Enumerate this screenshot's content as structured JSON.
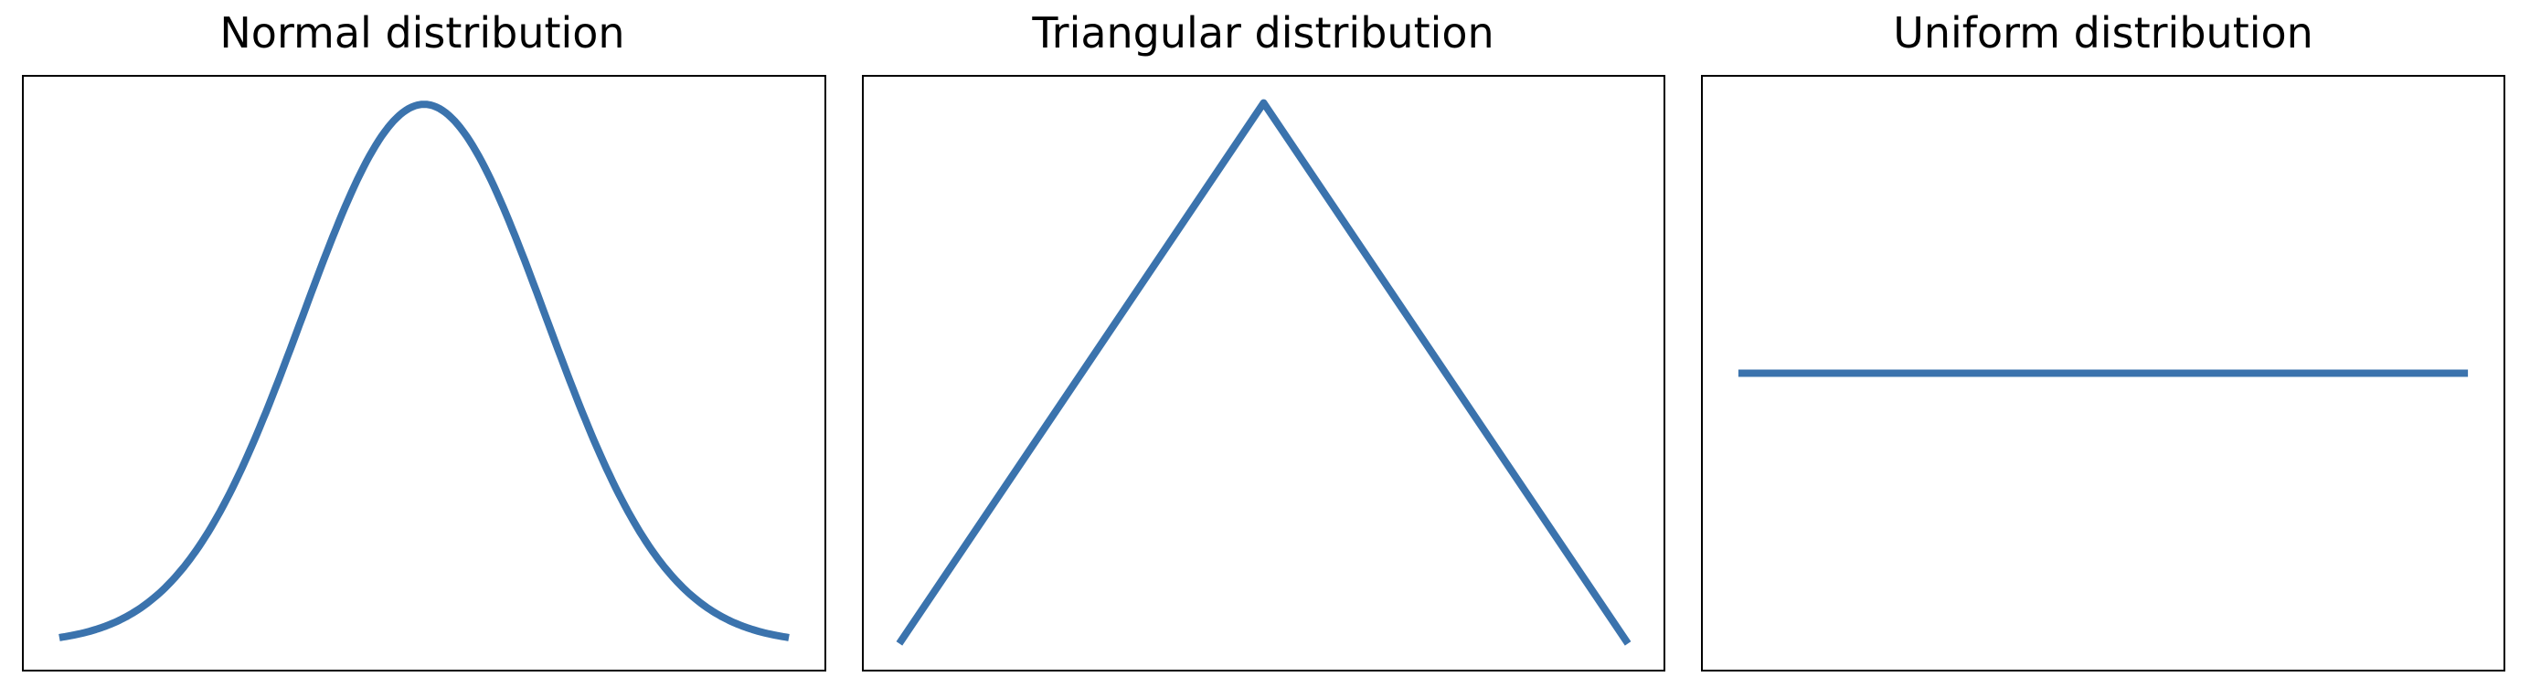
{
  "chart_data": [
    {
      "type": "line",
      "title": "Normal distribution",
      "xlabel": "",
      "ylabel": "",
      "xlim": [
        -3.3,
        3.3
      ],
      "ylim": [
        -0.02,
        0.42
      ],
      "grid": false,
      "legend": "none",
      "color": "#3b73ad",
      "function": "normal",
      "x": [
        -3.0,
        -2.5,
        -2.0,
        -1.5,
        -1.0,
        -0.5,
        0.0,
        0.5,
        1.0,
        1.5,
        2.0,
        2.5,
        3.0
      ],
      "y": [
        0.0044,
        0.0175,
        0.054,
        0.1295,
        0.242,
        0.3521,
        0.3989,
        0.3521,
        0.242,
        0.1295,
        0.054,
        0.0175,
        0.0044
      ]
    },
    {
      "type": "line",
      "title": "Triangular distribution",
      "xlabel": "",
      "ylabel": "",
      "xlim": [
        -0.05,
        1.05
      ],
      "ylim": [
        -0.05,
        1.05
      ],
      "grid": false,
      "legend": "none",
      "color": "#3b73ad",
      "x": [
        0.0,
        0.5,
        1.0
      ],
      "y": [
        0.0,
        1.0,
        0.0
      ]
    },
    {
      "type": "line",
      "title": "Uniform distribution",
      "xlabel": "",
      "ylabel": "",
      "xlim": [
        -0.05,
        1.05
      ],
      "ylim": [
        0.0,
        1.0
      ],
      "grid": false,
      "legend": "none",
      "color": "#3b73ad",
      "x": [
        0.0,
        1.0
      ],
      "y": [
        0.5,
        0.5
      ]
    }
  ]
}
